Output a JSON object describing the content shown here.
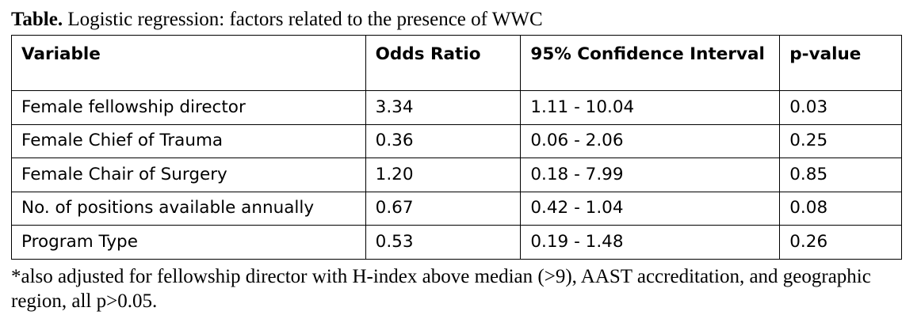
{
  "caption": {
    "label": "Table.",
    "text": " Logistic regression: factors related to the presence of WWC"
  },
  "table": {
    "headers": [
      "Variable",
      "Odds Ratio",
      "95% Confidence Interval",
      "p-value"
    ],
    "rows": [
      [
        "Female fellowship director",
        "3.34",
        "1.11 - 10.04",
        "0.03"
      ],
      [
        "Female Chief of Trauma",
        "0.36",
        "0.06 - 2.06",
        "0.25"
      ],
      [
        "Female Chair of Surgery",
        "1.20",
        "0.18 - 7.99",
        "0.85"
      ],
      [
        "No. of positions available annually",
        "0.67",
        "0.42 - 1.04",
        "0.08"
      ],
      [
        "Program Type",
        "0.53",
        "0.19 - 1.48",
        "0.26"
      ]
    ]
  },
  "footnote": "*also adjusted for fellowship director with H-index above median (>9), AAST accreditation, and geographic region, all p>0.05."
}
